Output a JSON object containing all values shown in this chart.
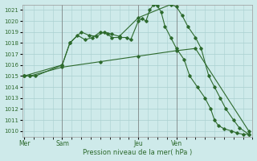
{
  "title": "Pression niveau de la mer( hPa )",
  "background_color": "#ceeaea",
  "grid_color": "#aad0d0",
  "line_color": "#2d6a2d",
  "ylim": [
    1009.5,
    1021.5
  ],
  "yticks": [
    1010,
    1011,
    1012,
    1013,
    1014,
    1015,
    1016,
    1017,
    1018,
    1019,
    1020,
    1021
  ],
  "day_positions": [
    0,
    1,
    3,
    4
  ],
  "day_labels": [
    "Mer",
    "Sam",
    "Jeu",
    "Ven"
  ],
  "day_vlines": [
    1,
    3,
    4
  ],
  "series1_x": [
    0.0,
    0.15,
    0.3,
    1.0,
    1.2,
    1.4,
    1.6,
    1.8,
    2.0,
    2.2,
    2.3,
    2.5,
    2.7,
    2.8,
    3.0,
    3.1,
    3.2,
    3.3,
    3.4,
    3.5,
    3.6,
    3.7,
    3.85,
    4.0,
    4.2,
    4.35,
    4.55,
    4.75,
    4.9,
    5.0,
    5.1,
    5.25,
    5.45,
    5.6,
    5.75,
    5.9
  ],
  "series1_y": [
    1015.0,
    1015.0,
    1015.0,
    1016.0,
    1018.0,
    1018.7,
    1018.3,
    1018.5,
    1019.0,
    1018.8,
    1018.5,
    1018.5,
    1018.5,
    1018.3,
    1020.0,
    1020.2,
    1020.0,
    1021.0,
    1021.5,
    1021.4,
    1020.8,
    1019.5,
    1018.5,
    1017.5,
    1016.5,
    1015.0,
    1014.0,
    1013.0,
    1012.0,
    1011.0,
    1010.5,
    1010.2,
    1010.0,
    1009.8,
    1009.7,
    1009.7
  ],
  "series2_x": [
    0.0,
    0.15,
    1.0,
    2.0,
    3.0,
    4.0,
    4.5,
    5.9
  ],
  "series2_y": [
    1015.0,
    1015.0,
    1015.8,
    1016.3,
    1016.8,
    1017.3,
    1017.5,
    1010.0
  ],
  "series3_x": [
    0.0,
    1.0,
    1.2,
    1.5,
    1.7,
    1.9,
    2.1,
    2.3,
    2.5,
    3.0,
    3.85,
    4.0,
    4.15,
    4.3,
    4.5,
    4.65,
    4.85,
    5.0,
    5.15,
    5.3,
    5.5,
    5.65,
    5.9
  ],
  "series3_y": [
    1015.0,
    1016.0,
    1018.0,
    1019.0,
    1018.7,
    1018.6,
    1019.0,
    1018.8,
    1018.6,
    1020.3,
    1021.5,
    1021.3,
    1020.5,
    1019.5,
    1018.5,
    1017.5,
    1015.0,
    1014.0,
    1013.0,
    1012.0,
    1011.0,
    1010.3,
    1009.7
  ]
}
